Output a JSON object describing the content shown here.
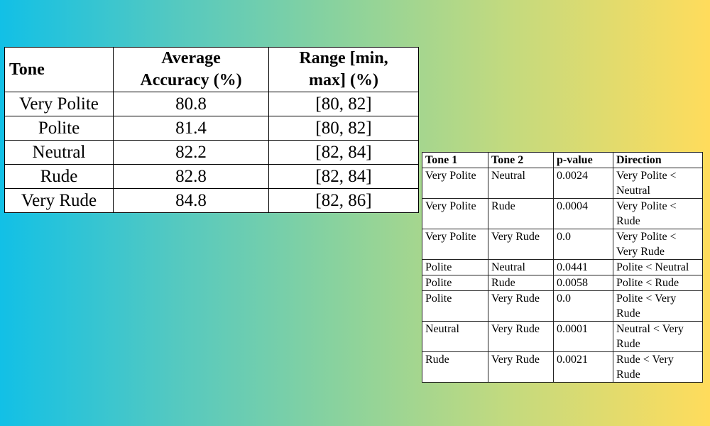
{
  "accuracy_table": {
    "headers": {
      "tone": "Tone",
      "avg_line1": "Average",
      "avg_line2": "Accuracy (%)",
      "range_line1": "Range [min,",
      "range_line2": "max] (%)"
    },
    "rows": [
      {
        "tone": "Very Polite",
        "avg": "80.8",
        "range": "[80, 82]"
      },
      {
        "tone": "Polite",
        "avg": "81.4",
        "range": "[80, 82]"
      },
      {
        "tone": "Neutral",
        "avg": "82.2",
        "range": "[82, 84]"
      },
      {
        "tone": "Rude",
        "avg": "82.8",
        "range": "[82, 84]"
      },
      {
        "tone": "Very Rude",
        "avg": "84.8",
        "range": "[82, 86]"
      }
    ]
  },
  "pvalue_table": {
    "headers": {
      "tone1": "Tone 1",
      "tone2": "Tone 2",
      "pvalue": "p-value",
      "direction": "Direction"
    },
    "rows": [
      {
        "tone1": "Very Polite",
        "tone2": "Neutral",
        "pvalue": "0.0024",
        "direction": "Very Polite < Neutral"
      },
      {
        "tone1": "Very Polite",
        "tone2": "Rude",
        "pvalue": "0.0004",
        "direction": "Very Polite < Rude"
      },
      {
        "tone1": "Very Polite",
        "tone2": "Very Rude",
        "pvalue": "0.0",
        "direction": "Very Polite < Very Rude"
      },
      {
        "tone1": "Polite",
        "tone2": "Neutral",
        "pvalue": "0.0441",
        "direction": "Polite < Neutral"
      },
      {
        "tone1": "Polite",
        "tone2": "Rude",
        "pvalue": "0.0058",
        "direction": "Polite < Rude"
      },
      {
        "tone1": "Polite",
        "tone2": "Very Rude",
        "pvalue": "0.0",
        "direction": "Polite < Very Rude"
      },
      {
        "tone1": "Neutral",
        "tone2": "Very Rude",
        "pvalue": "0.0001",
        "direction": "Neutral < Very Rude"
      },
      {
        "tone1": "Rude",
        "tone2": "Very Rude",
        "pvalue": "0.0021",
        "direction": "Rude < Very Rude"
      }
    ]
  }
}
